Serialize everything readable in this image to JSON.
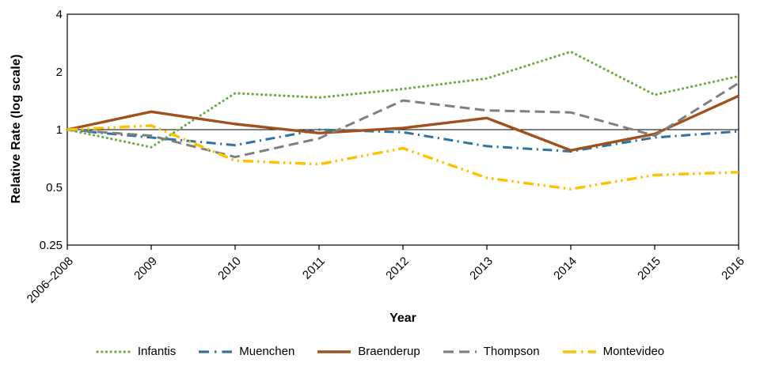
{
  "chart_data": {
    "type": "line",
    "title": "",
    "xlabel": "Year",
    "ylabel": "Relative Rate (log scale)",
    "y_scale": "log",
    "ylim": [
      0.25,
      4
    ],
    "y_ticks": [
      4,
      2,
      1,
      0.5,
      0.25
    ],
    "y_tick_labels": [
      "4",
      "2",
      "1",
      "0.5",
      "0.25"
    ],
    "reference_line_y": 1,
    "grid": "off",
    "legend_position": "bottom",
    "categories": [
      "2006–2008",
      "2009",
      "2010",
      "2011",
      "2012",
      "2013",
      "2014",
      "2015",
      "2016"
    ],
    "series": [
      {
        "name": "Infantis",
        "color": "#6FAC47",
        "dash": "dotted",
        "values": [
          1.0,
          0.81,
          1.55,
          1.47,
          1.63,
          1.85,
          2.55,
          1.52,
          1.9
        ]
      },
      {
        "name": "Muenchen",
        "color": "#2E74A0",
        "dash": "dash-dot",
        "values": [
          1.0,
          0.91,
          0.83,
          1.0,
          0.97,
          0.82,
          0.77,
          0.91,
          0.98
        ]
      },
      {
        "name": "Braenderup",
        "color": "#A0511E",
        "dash": "solid",
        "values": [
          1.0,
          1.24,
          1.07,
          0.96,
          1.02,
          1.15,
          0.78,
          0.95,
          1.5
        ]
      },
      {
        "name": "Thompson",
        "color": "#7F7F7F",
        "dash": "dashed",
        "values": [
          1.0,
          0.93,
          0.72,
          0.9,
          1.42,
          1.26,
          1.23,
          0.93,
          1.75
        ]
      },
      {
        "name": "Montevideo",
        "color": "#FFC000",
        "dash": "dash-dot-dot",
        "values": [
          1.0,
          1.05,
          0.69,
          0.66,
          0.8,
          0.56,
          0.49,
          0.58,
          0.6
        ]
      }
    ],
    "axis_color": "#000000",
    "background_color": "#FFFFFF"
  }
}
